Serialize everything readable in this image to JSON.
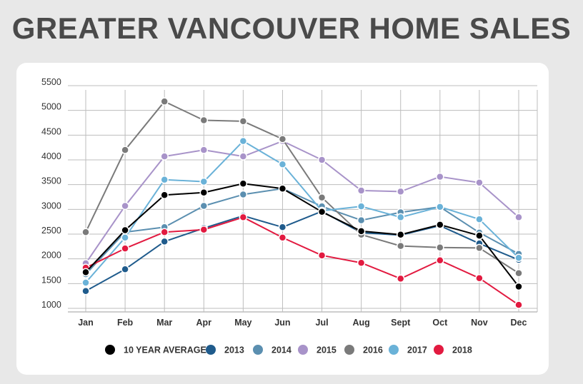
{
  "chart_data": {
    "type": "line",
    "title": "GREATER VANCOUVER HOME SALES",
    "categories": [
      "Jan",
      "Feb",
      "Mar",
      "Apr",
      "May",
      "Jun",
      "Jul",
      "Aug",
      "Sept",
      "Oct",
      "Nov",
      "Dec"
    ],
    "y_ticks": [
      1000,
      1500,
      2000,
      2500,
      3000,
      3500,
      4000,
      4500,
      5000,
      5500
    ],
    "ylim": [
      1000,
      5500
    ],
    "grid": true,
    "legend_position": "bottom",
    "series": [
      {
        "name": "10 YEAR AVERAGE",
        "color": "#000000",
        "values": [
          1730,
          2580,
          3290,
          3340,
          3520,
          3420,
          2950,
          2560,
          2490,
          2690,
          2470,
          1440
        ]
      },
      {
        "name": "2013",
        "color": "#1f5b8c",
        "values": [
          1350,
          1790,
          2350,
          2620,
          2870,
          2640,
          2960,
          2530,
          2480,
          2670,
          2310,
          1980
        ]
      },
      {
        "name": "2014",
        "color": "#5b8fb0",
        "values": [
          1690,
          2540,
          2640,
          3070,
          3300,
          3420,
          3060,
          2780,
          2940,
          3050,
          2530,
          2100
        ]
      },
      {
        "name": "2015",
        "color": "#a893c9",
        "values": [
          1910,
          3070,
          4070,
          4200,
          4070,
          4380,
          4000,
          3380,
          3360,
          3660,
          3540,
          2840
        ]
      },
      {
        "name": "2016",
        "color": "#7a7a7a",
        "values": [
          2540,
          4200,
          5180,
          4800,
          4780,
          4420,
          3240,
          2490,
          2260,
          2230,
          2220,
          1710
        ]
      },
      {
        "name": "2017",
        "color": "#6ab2d8",
        "values": [
          1520,
          2430,
          3600,
          3560,
          4380,
          3910,
          2970,
          3060,
          2840,
          3050,
          2800,
          2020
        ]
      },
      {
        "name": "2018",
        "color": "#e21a40",
        "values": [
          1820,
          2210,
          2540,
          2590,
          2840,
          2430,
          2070,
          1920,
          1600,
          1970,
          1610,
          1070
        ]
      }
    ]
  }
}
